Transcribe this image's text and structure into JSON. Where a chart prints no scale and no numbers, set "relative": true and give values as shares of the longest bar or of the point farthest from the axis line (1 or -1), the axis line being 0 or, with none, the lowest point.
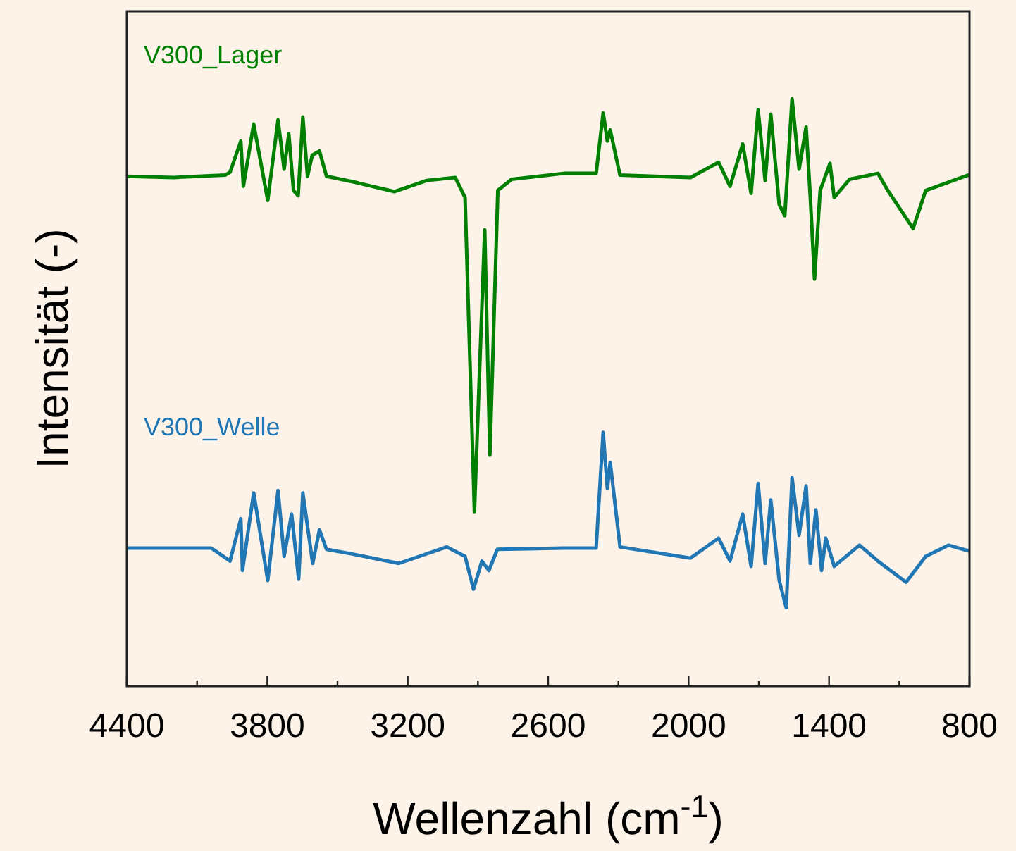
{
  "chart_data": {
    "type": "line",
    "xlabel": "Wellenzahl (cm$^{-1}$)",
    "ylabel": "Intensität (-)",
    "relative": true,
    "tick_labels": "x",
    "grid": false,
    "legend": false,
    "marker": "none",
    "line_style": "solid",
    "xlim": [
      4400,
      800
    ],
    "xticks": [
      4400,
      {
        "value": 4100,
        "label": null
      },
      3800,
      {
        "value": 3500,
        "label": null
      },
      3200,
      {
        "value": 2900,
        "label": null
      },
      2600,
      {
        "value": 2300,
        "label": null
      },
      2000,
      {
        "value": 1700,
        "label": null
      },
      1400,
      {
        "value": 1100,
        "label": null
      },
      800
    ],
    "series": [
      {
        "name": "V300_Lager",
        "color": "#008000",
        "x": [
          4400,
          4200,
          3980,
          3959,
          3913,
          3902,
          3858,
          3828,
          3798,
          3754,
          3728,
          3708,
          3688,
          3668,
          3648,
          3628,
          3608,
          3577,
          3547,
          3437,
          3256,
          3118,
          2997,
          2955,
          2915,
          2871,
          2849,
          2815,
          2756,
          2534,
          2395,
          2365,
          2347,
          2335,
          2293,
          1992,
          1872,
          1823,
          1769,
          1733,
          1703,
          1673,
          1649,
          1613,
          1589,
          1558,
          1528,
          1498,
          1480,
          1462,
          1438,
          1396,
          1378,
          1312,
          1191,
          1149,
          1041,
          987,
          806
        ],
        "values": [
          0.868,
          0.866,
          0.87,
          0.875,
          0.928,
          0.851,
          0.957,
          0.892,
          0.827,
          0.964,
          0.88,
          0.94,
          0.844,
          0.835,
          0.969,
          0.868,
          0.904,
          0.911,
          0.868,
          0.859,
          0.842,
          0.861,
          0.866,
          0.832,
          0.297,
          0.777,
          0.393,
          0.844,
          0.863,
          0.873,
          0.873,
          0.976,
          0.928,
          0.947,
          0.87,
          0.866,
          0.892,
          0.851,
          0.923,
          0.839,
          0.981,
          0.861,
          0.974,
          0.82,
          0.801,
          1.0,
          0.88,
          0.952,
          0.832,
          0.693,
          0.844,
          0.89,
          0.832,
          0.863,
          0.873,
          0.844,
          0.779,
          0.844,
          0.87
        ]
      },
      {
        "name": "V300_Welle",
        "color": "#2176b4",
        "x": [
          4400,
          4039,
          3959,
          3913,
          3906,
          3858,
          3798,
          3754,
          3728,
          3696,
          3666,
          3648,
          3606,
          3577,
          3547,
          3437,
          3238,
          3033,
          2955,
          2919,
          2883,
          2853,
          2817,
          2534,
          2395,
          2365,
          2347,
          2335,
          2293,
          1992,
          1872,
          1823,
          1769,
          1733,
          1703,
          1673,
          1649,
          1613,
          1583,
          1558,
          1528,
          1498,
          1480,
          1456,
          1432,
          1414,
          1378,
          1270,
          1191,
          1071,
          987,
          890,
          800
        ],
        "values": [
          0.235,
          0.235,
          0.213,
          0.285,
          0.197,
          0.329,
          0.18,
          0.333,
          0.221,
          0.293,
          0.182,
          0.329,
          0.209,
          0.266,
          0.233,
          0.225,
          0.209,
          0.237,
          0.221,
          0.165,
          0.213,
          0.197,
          0.233,
          0.235,
          0.235,
          0.432,
          0.336,
          0.381,
          0.237,
          0.218,
          0.252,
          0.213,
          0.293,
          0.204,
          0.345,
          0.209,
          0.317,
          0.18,
          0.134,
          0.355,
          0.257,
          0.341,
          0.209,
          0.3,
          0.197,
          0.252,
          0.204,
          0.24,
          0.213,
          0.177,
          0.221,
          0.24,
          0.23
        ]
      }
    ]
  }
}
